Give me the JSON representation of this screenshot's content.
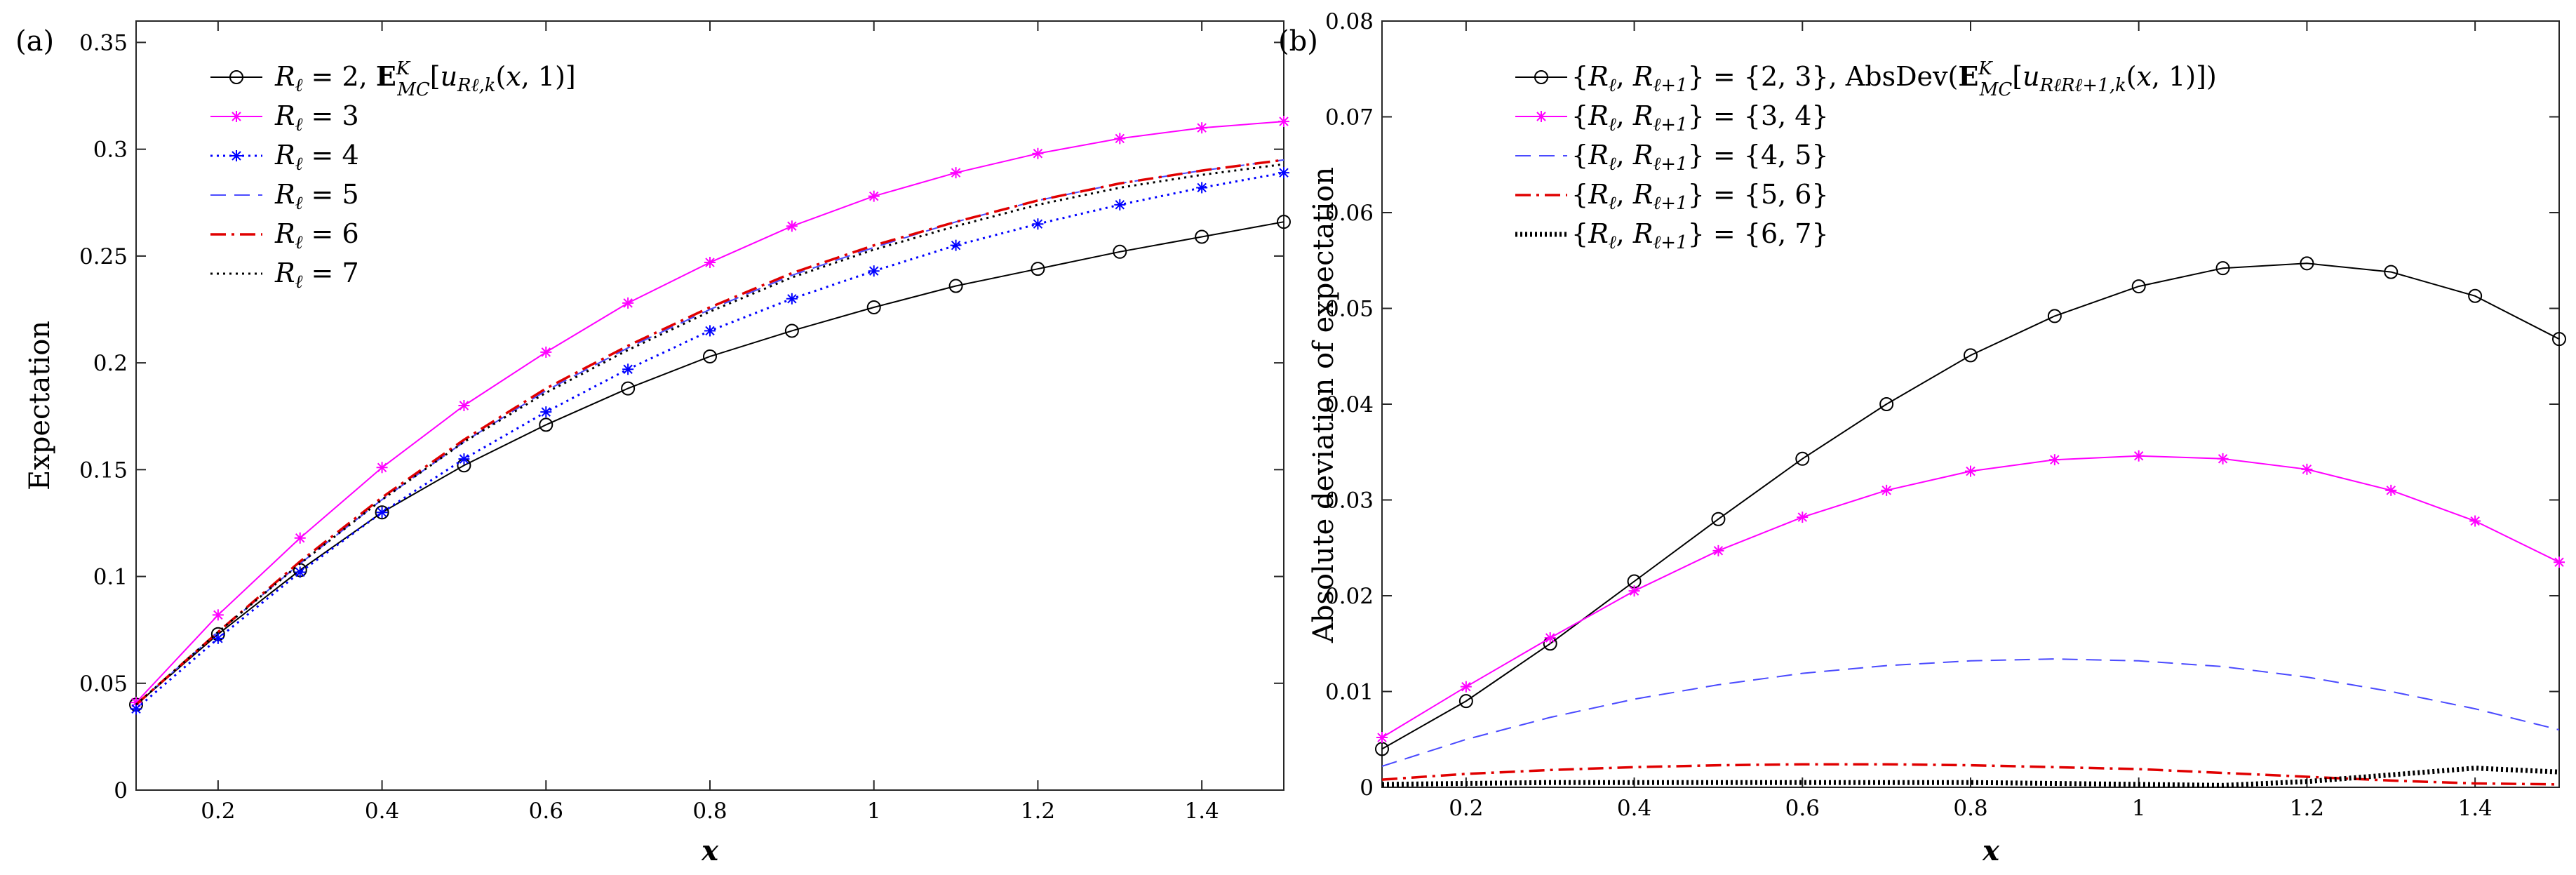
{
  "chart_data": [
    {
      "panel_label": "(a)",
      "type": "line",
      "xlabel": "x",
      "ylabel": "Expectation",
      "xlim": [
        0.1,
        1.5
      ],
      "ylim": [
        0,
        0.36
      ],
      "x_ticks": [
        0.2,
        0.4,
        0.6,
        0.8,
        1.0,
        1.2,
        1.4
      ],
      "x_tick_labels": [
        "0.2",
        "0.4",
        "0.6",
        "0.8",
        "1",
        "1.2",
        "1.4"
      ],
      "y_ticks": [
        0,
        0.05,
        0.1,
        0.15,
        0.2,
        0.25,
        0.3,
        0.35
      ],
      "y_tick_labels": [
        "0",
        "0.05",
        "0.1",
        "0.15",
        "0.2",
        "0.25",
        "0.3",
        "0.35"
      ],
      "legend_position": "top-left",
      "x": [
        0.1,
        0.2,
        0.3,
        0.4,
        0.5,
        0.6,
        0.7,
        0.8,
        0.9,
        1.0,
        1.1,
        1.2,
        1.3,
        1.4,
        1.5
      ],
      "series": [
        {
          "name": "R_ℓ = 2, E^K_MC[u_{Rℓ,k}(x,1)]",
          "color": "#000000",
          "style": "solid",
          "marker": "circle",
          "values": [
            0.04,
            0.073,
            0.103,
            0.13,
            0.152,
            0.171,
            0.188,
            0.203,
            0.215,
            0.226,
            0.236,
            0.244,
            0.252,
            0.259,
            0.266
          ]
        },
        {
          "name": "R_ℓ = 3",
          "color": "#ff00ff",
          "style": "solid",
          "marker": "star",
          "values": [
            0.041,
            0.082,
            0.118,
            0.151,
            0.18,
            0.205,
            0.228,
            0.247,
            0.264,
            0.278,
            0.289,
            0.298,
            0.305,
            0.31,
            0.313
          ]
        },
        {
          "name": "R_ℓ = 4",
          "color": "#0000ff",
          "style": "dotted",
          "marker": "asterisk",
          "values": [
            0.038,
            0.071,
            0.102,
            0.13,
            0.155,
            0.177,
            0.197,
            0.215,
            0.23,
            0.243,
            0.255,
            0.265,
            0.274,
            0.282,
            0.289
          ]
        },
        {
          "name": "R_ℓ = 5",
          "color": "#4a4aff",
          "style": "dashed",
          "marker": "none",
          "values": [
            0.04,
            0.074,
            0.106,
            0.136,
            0.163,
            0.187,
            0.207,
            0.225,
            0.241,
            0.254,
            0.266,
            0.276,
            0.284,
            0.29,
            0.295
          ]
        },
        {
          "name": "R_ℓ = 6",
          "color": "#e00000",
          "style": "dashdot",
          "marker": "none",
          "values": [
            0.04,
            0.074,
            0.107,
            0.137,
            0.164,
            0.188,
            0.208,
            0.226,
            0.242,
            0.255,
            0.266,
            0.276,
            0.284,
            0.29,
            0.295
          ]
        },
        {
          "name": "R_ℓ = 7",
          "color": "#000000",
          "style": "dotted",
          "marker": "none",
          "values": [
            0.04,
            0.074,
            0.106,
            0.136,
            0.163,
            0.186,
            0.206,
            0.224,
            0.24,
            0.253,
            0.264,
            0.274,
            0.282,
            0.288,
            0.293
          ]
        }
      ]
    },
    {
      "panel_label": "(b)",
      "type": "line",
      "xlabel": "x",
      "ylabel": "Absolute deviation of expectation",
      "xlim": [
        0.1,
        1.5
      ],
      "ylim": [
        0,
        0.08
      ],
      "x_ticks": [
        0.2,
        0.4,
        0.6,
        0.8,
        1.0,
        1.2,
        1.4
      ],
      "x_tick_labels": [
        "0.2",
        "0.4",
        "0.6",
        "0.8",
        "1",
        "1.2",
        "1.4"
      ],
      "y_ticks": [
        0,
        0.01,
        0.02,
        0.03,
        0.04,
        0.05,
        0.06,
        0.07,
        0.08
      ],
      "y_tick_labels": [
        "0",
        "0.01",
        "0.02",
        "0.03",
        "0.04",
        "0.05",
        "0.06",
        "0.07",
        "0.08"
      ],
      "legend_position": "top-left",
      "x": [
        0.1,
        0.2,
        0.3,
        0.4,
        0.5,
        0.6,
        0.7,
        0.8,
        0.9,
        1.0,
        1.1,
        1.2,
        1.3,
        1.4,
        1.5
      ],
      "series": [
        {
          "name": "{R_ℓ, R_ℓ+1} = {2,3}, AbsDev(E^K_MC[u_{RℓRℓ+1,k}(x,1)])",
          "color": "#000000",
          "style": "solid",
          "marker": "circle",
          "values": [
            0.004,
            0.009,
            0.015,
            0.0215,
            0.028,
            0.0343,
            0.04,
            0.0451,
            0.0492,
            0.0523,
            0.0542,
            0.0547,
            0.0538,
            0.0513,
            0.0468
          ]
        },
        {
          "name": "{R_ℓ, R_ℓ+1} = {3,4}",
          "color": "#ff00ff",
          "style": "solid",
          "marker": "star",
          "values": [
            0.0052,
            0.0105,
            0.0156,
            0.0205,
            0.0247,
            0.0282,
            0.031,
            0.033,
            0.0342,
            0.0346,
            0.0343,
            0.0332,
            0.031,
            0.0278,
            0.0235
          ]
        },
        {
          "name": "{R_ℓ, R_ℓ+1} = {4,5}",
          "color": "#4a4aff",
          "style": "dashed",
          "marker": "none",
          "values": [
            0.0022,
            0.005,
            0.0073,
            0.0092,
            0.0107,
            0.0119,
            0.0127,
            0.0132,
            0.0134,
            0.0132,
            0.0126,
            0.0115,
            0.01,
            0.0082,
            0.006
          ]
        },
        {
          "name": "{R_ℓ, R_ℓ+1} = {5,6}",
          "color": "#e00000",
          "style": "dashdot",
          "marker": "none",
          "values": [
            0.0008,
            0.0014,
            0.0018,
            0.0021,
            0.0023,
            0.0024,
            0.0024,
            0.0023,
            0.0021,
            0.0019,
            0.0015,
            0.0011,
            0.0007,
            0.0004,
            0.0003
          ]
        },
        {
          "name": "{R_ℓ, R_ℓ+1} = {6,7}",
          "color": "#000000",
          "style": "thickdotted",
          "marker": "none",
          "values": [
            0.0003,
            0.0004,
            0.0005,
            0.0005,
            0.0005,
            0.0005,
            0.0005,
            0.0005,
            0.0004,
            0.0003,
            0.0002,
            0.0006,
            0.0013,
            0.002,
            0.0016
          ]
        }
      ]
    }
  ]
}
